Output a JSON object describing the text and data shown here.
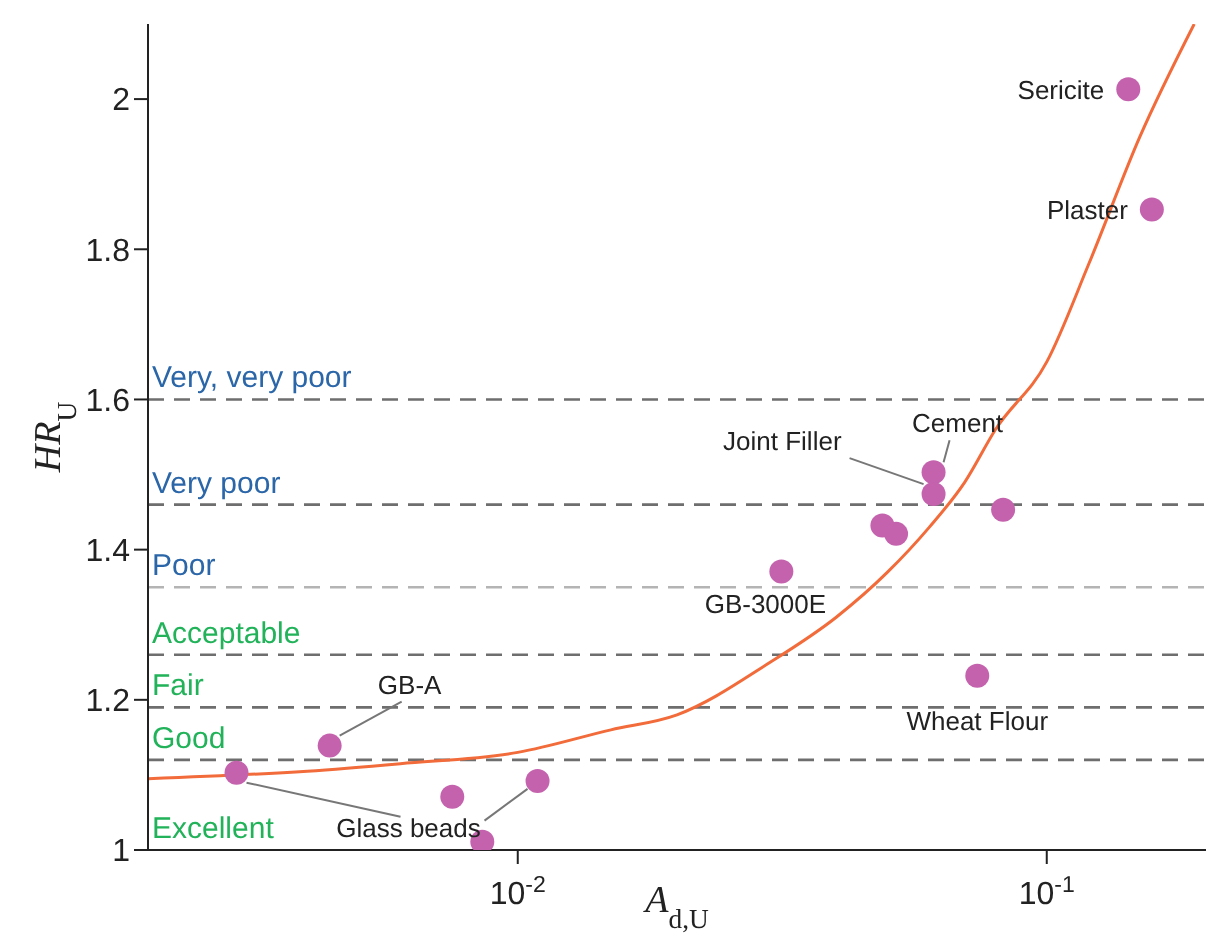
{
  "chart_data": {
    "type": "scatter",
    "xlabel": "A$_{d,U}$",
    "ylabel": "HR$_{U}$",
    "log": "x",
    "xlim": [
      0.002,
      0.2
    ],
    "xticks": [
      {
        "value": 0.01,
        "label": "10$^{-2}$"
      },
      {
        "value": 0.1,
        "label": "10$^{-1}$"
      }
    ],
    "ylim": [
      1,
      2.1
    ],
    "yticks": [
      1,
      1.2,
      1.4,
      1.6,
      1.8,
      2
    ],
    "grid": false,
    "legend": false,
    "marker": "circle",
    "series": [
      {
        "color": "#c462ae",
        "x": [
          0.1426,
          0.158,
          0.0611,
          0.0611,
          0.0827,
          0.0489,
          0.0519,
          0.0315,
          0.0739,
          0.00441,
          0.00294,
          0.00752,
          0.0109,
          0.00857
        ],
        "values": [
          2.013,
          1.853,
          1.503,
          1.474,
          1.453,
          1.432,
          1.421,
          1.371,
          1.232,
          1.139,
          1.103,
          1.071,
          1.092,
          1.011
        ]
      },
      {
        "type": "line",
        "color": "#f26b3a",
        "marker": "none",
        "x": [
          0.002,
          0.004,
          0.006,
          0.01,
          0.015,
          0.02,
          0.03,
          0.04,
          0.05,
          0.06,
          0.07,
          0.08,
          0.1,
          0.12,
          0.15,
          0.19
        ],
        "values": [
          1.095,
          1.105,
          1.115,
          1.13,
          1.16,
          1.18,
          1.25,
          1.31,
          1.37,
          1.43,
          1.49,
          1.56,
          1.65,
          1.78,
          1.95,
          2.1
        ]
      }
    ],
    "ref_lines": [
      {
        "axis": "y",
        "value": 1.6,
        "label": "Very, very poor",
        "color": "#6e6e6e",
        "line_style": "dashed"
      },
      {
        "axis": "y",
        "value": 1.46,
        "label": "Very poor",
        "color": "#6e6e6e",
        "line_style": "dashed"
      },
      {
        "axis": "y",
        "value": 1.35,
        "label": "Poor",
        "color": "#b4b4b4",
        "line_style": "dashed"
      },
      {
        "axis": "y",
        "value": 1.26,
        "label": "Acceptable",
        "color": "#6e6e6e",
        "line_style": "dashed"
      },
      {
        "axis": "y",
        "value": 1.19,
        "label": "Fair",
        "color": "#6e6e6e",
        "line_style": "dashed"
      },
      {
        "axis": "y",
        "value": 1.12,
        "label": "Good",
        "color": "#6e6e6e",
        "line_style": "dashed"
      }
    ],
    "annotations": [
      {
        "text": "Sericite",
        "x": 0.1426,
        "y": 2.013
      },
      {
        "text": "Plaster",
        "x": 0.158,
        "y": 1.853
      },
      {
        "text": "Cement",
        "x": 0.0611,
        "y": 1.503
      },
      {
        "text": "Joint Filler",
        "x": 0.0611,
        "y": 1.474
      },
      {
        "text": "GB-3000E",
        "x": 0.0315,
        "y": 1.371
      },
      {
        "text": "Wheat Flour",
        "x": 0.0739,
        "y": 1.232
      },
      {
        "text": "GB-A",
        "x": 0.00441,
        "y": 1.139
      },
      {
        "text": "Glass beads",
        "x": 0.00294,
        "y": 1.103
      },
      "Excellent"
    ]
  }
}
